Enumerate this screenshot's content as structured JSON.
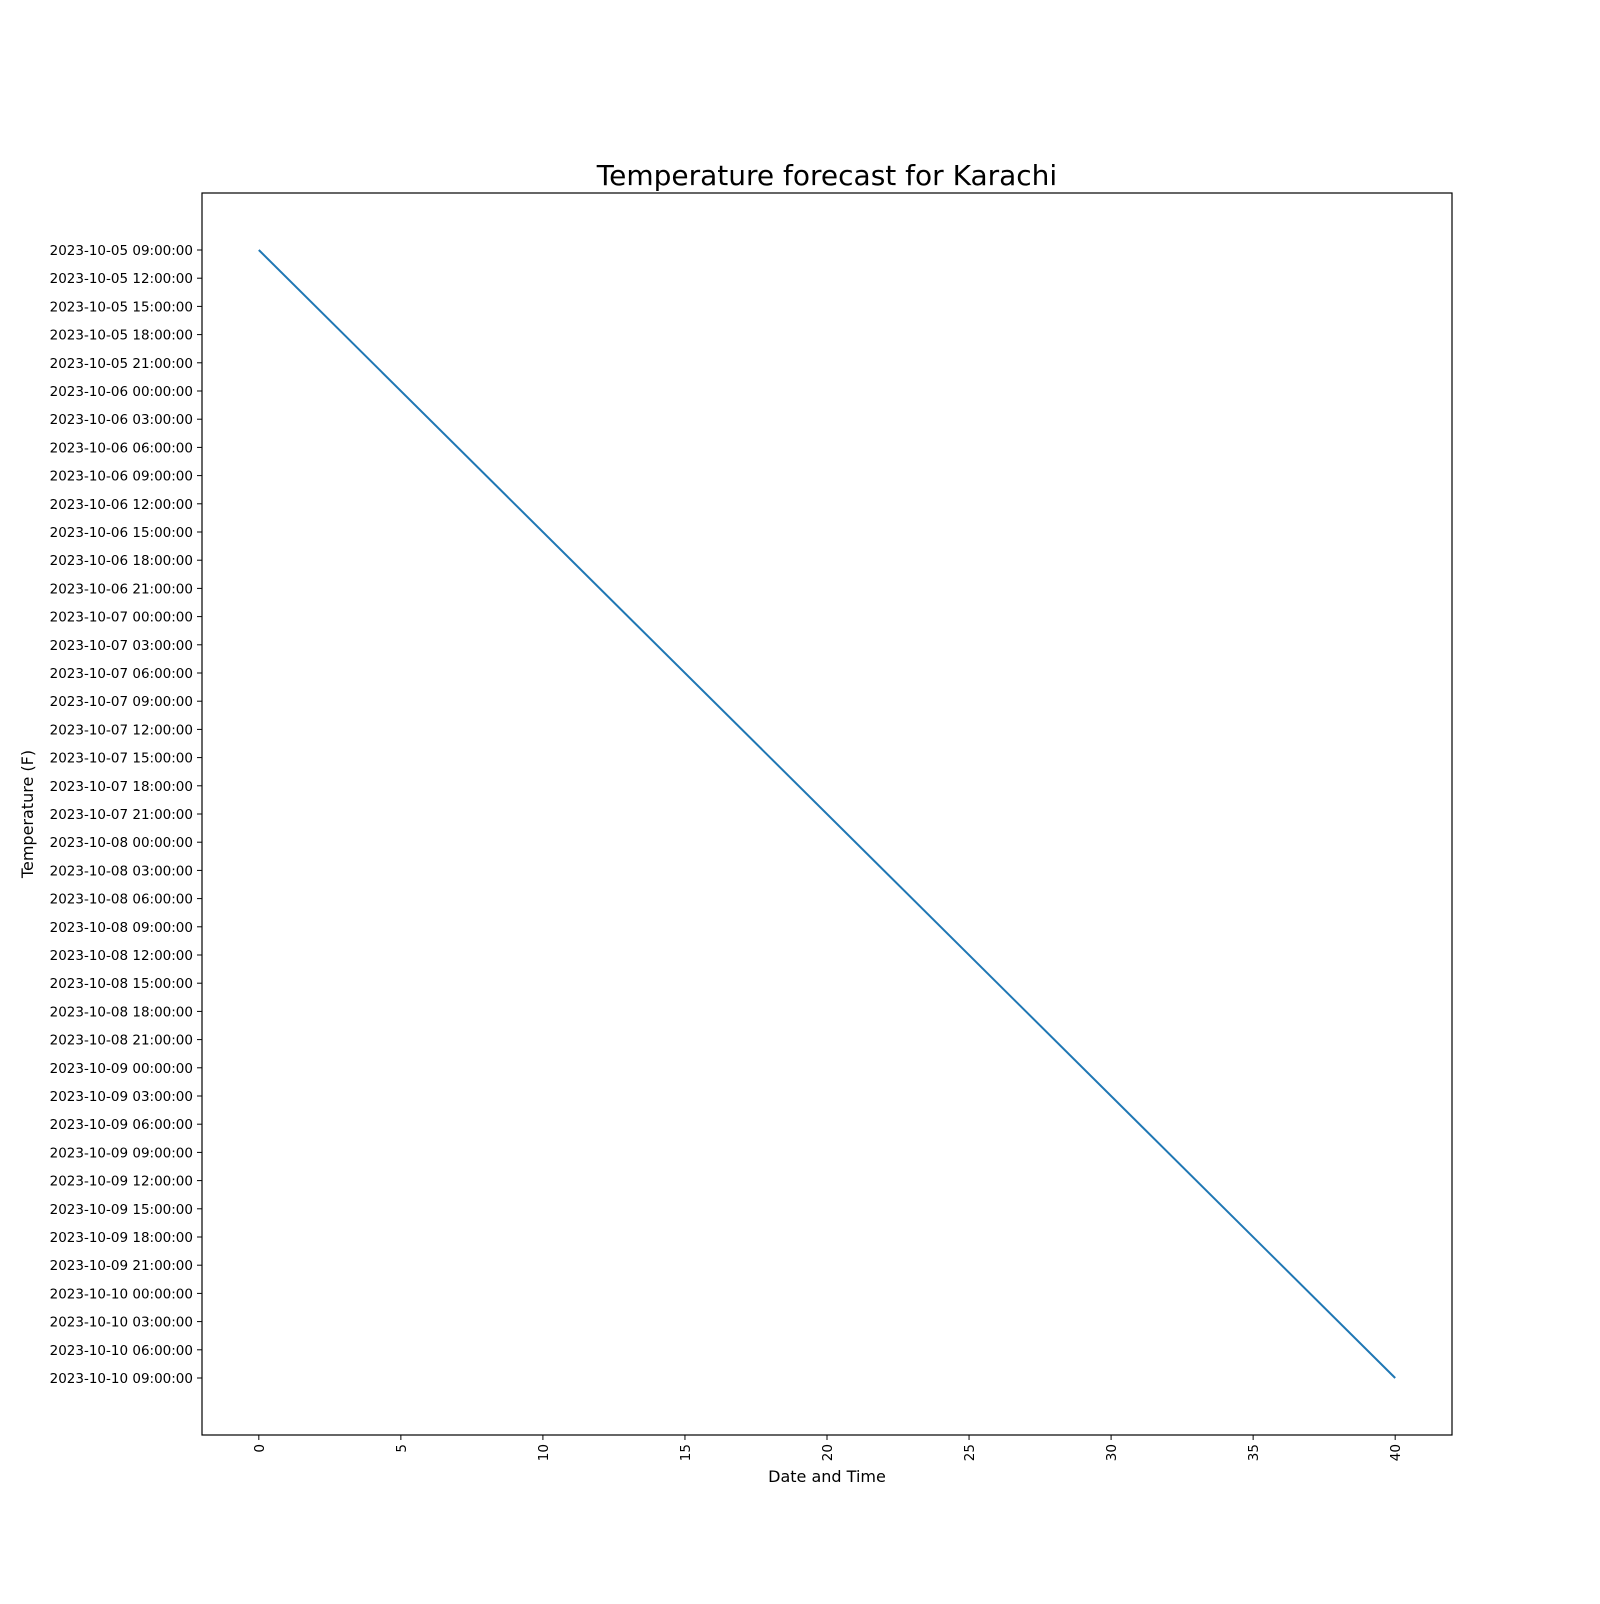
{
  "chart_data": {
    "type": "line",
    "title": "Temperature forecast for Karachi",
    "xlabel": "Date and Time",
    "ylabel": "Temperature (F)",
    "x_ticks": [
      "0",
      "5",
      "10",
      "15",
      "20",
      "25",
      "30",
      "35",
      "40"
    ],
    "y_categories": [
      "2023-10-05 09:00:00",
      "2023-10-05 12:00:00",
      "2023-10-05 15:00:00",
      "2023-10-05 18:00:00",
      "2023-10-05 21:00:00",
      "2023-10-06 00:00:00",
      "2023-10-06 03:00:00",
      "2023-10-06 06:00:00",
      "2023-10-06 09:00:00",
      "2023-10-06 12:00:00",
      "2023-10-06 15:00:00",
      "2023-10-06 18:00:00",
      "2023-10-06 21:00:00",
      "2023-10-07 00:00:00",
      "2023-10-07 03:00:00",
      "2023-10-07 06:00:00",
      "2023-10-07 09:00:00",
      "2023-10-07 12:00:00",
      "2023-10-07 15:00:00",
      "2023-10-07 18:00:00",
      "2023-10-07 21:00:00",
      "2023-10-08 00:00:00",
      "2023-10-08 03:00:00",
      "2023-10-08 06:00:00",
      "2023-10-08 09:00:00",
      "2023-10-08 12:00:00",
      "2023-10-08 15:00:00",
      "2023-10-08 18:00:00",
      "2023-10-08 21:00:00",
      "2023-10-09 00:00:00",
      "2023-10-09 03:00:00",
      "2023-10-09 06:00:00",
      "2023-10-09 09:00:00",
      "2023-10-09 12:00:00",
      "2023-10-09 15:00:00",
      "2023-10-09 18:00:00",
      "2023-10-09 21:00:00",
      "2023-10-10 00:00:00",
      "2023-10-10 03:00:00",
      "2023-10-10 06:00:00",
      "2023-10-10 09:00:00"
    ],
    "series": [
      {
        "color": "#1f77b4",
        "x": [
          0,
          40
        ],
        "y": [
          "2023-10-05 09:00:00",
          "2023-10-10 09:00:00"
        ]
      }
    ],
    "xlim": [
      -2,
      42
    ],
    "grid": false,
    "x_tick_rotation": "vertical"
  }
}
